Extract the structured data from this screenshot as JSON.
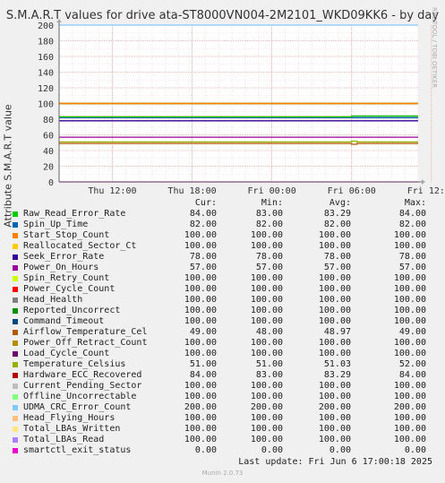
{
  "chart_data": {
    "type": "line",
    "title": "S.M.A.R.T values for drive ata-ST8000VN004-2M2101_WKD09KK6 - by day",
    "ylabel": "Attribute S.M.A.R.T value",
    "ylim": [
      0,
      200
    ],
    "yticks": [
      0,
      20,
      40,
      60,
      80,
      100,
      120,
      140,
      160,
      180,
      200
    ],
    "xticks": [
      "Thu 12:00",
      "Thu 18:00",
      "Fri 00:00",
      "Fri 06:00",
      "Fri 12:00"
    ],
    "xrange_hours": [
      8,
      35
    ],
    "xtick_hours": [
      12,
      18,
      24,
      30,
      36
    ],
    "grid": true,
    "legend_position": "bottom",
    "series": [
      {
        "name": "Raw_Read_Error_Rate",
        "color": "#00cc00",
        "cur": "84.00",
        "min": "83.00",
        "avg": "83.29",
        "max": "84.00",
        "points": [
          [
            8,
            83
          ],
          [
            30,
            83
          ],
          [
            30,
            84
          ],
          [
            35,
            84
          ]
        ]
      },
      {
        "name": "Spin_Up_Time",
        "color": "#0066b3",
        "cur": "82.00",
        "min": "82.00",
        "avg": "82.00",
        "max": "82.00",
        "points": [
          [
            8,
            82
          ],
          [
            35,
            82
          ]
        ]
      },
      {
        "name": "Start_Stop_Count",
        "color": "#ff8000",
        "cur": "100.00",
        "min": "100.00",
        "avg": "100.00",
        "max": "100.00",
        "points": [
          [
            8,
            100
          ],
          [
            35,
            100
          ]
        ]
      },
      {
        "name": "Reallocated_Sector_Ct",
        "color": "#ffcc00",
        "cur": "100.00",
        "min": "100.00",
        "avg": "100.00",
        "max": "100.00",
        "points": [
          [
            8,
            100
          ],
          [
            35,
            100
          ]
        ]
      },
      {
        "name": "Seek_Error_Rate",
        "color": "#330099",
        "cur": "78.00",
        "min": "78.00",
        "avg": "78.00",
        "max": "78.00",
        "points": [
          [
            8,
            78
          ],
          [
            35,
            78
          ]
        ]
      },
      {
        "name": "Power_On_Hours",
        "color": "#990099",
        "cur": "57.00",
        "min": "57.00",
        "avg": "57.00",
        "max": "57.00",
        "points": [
          [
            8,
            57
          ],
          [
            35,
            57
          ]
        ]
      },
      {
        "name": "Spin_Retry_Count",
        "color": "#ccff00",
        "cur": "100.00",
        "min": "100.00",
        "avg": "100.00",
        "max": "100.00",
        "points": [
          [
            8,
            100
          ],
          [
            35,
            100
          ]
        ]
      },
      {
        "name": "Power_Cycle_Count",
        "color": "#ff0000",
        "cur": "100.00",
        "min": "100.00",
        "avg": "100.00",
        "max": "100.00",
        "points": [
          [
            8,
            100
          ],
          [
            35,
            100
          ]
        ]
      },
      {
        "name": "Head_Health",
        "color": "#808080",
        "cur": "100.00",
        "min": "100.00",
        "avg": "100.00",
        "max": "100.00",
        "points": [
          [
            8,
            100
          ],
          [
            35,
            100
          ]
        ]
      },
      {
        "name": "Reported_Uncorrect",
        "color": "#008f00",
        "cur": "100.00",
        "min": "100.00",
        "avg": "100.00",
        "max": "100.00",
        "points": [
          [
            8,
            100
          ],
          [
            35,
            100
          ]
        ]
      },
      {
        "name": "Command_Timeout",
        "color": "#00487d",
        "cur": "100.00",
        "min": "100.00",
        "avg": "100.00",
        "max": "100.00",
        "points": [
          [
            8,
            100
          ],
          [
            35,
            100
          ]
        ]
      },
      {
        "name": "Airflow_Temperature_Cel",
        "color": "#b35a00",
        "cur": "49.00",
        "min": "48.00",
        "avg": "48.97",
        "max": "49.00",
        "points": [
          [
            8,
            49
          ],
          [
            30,
            49
          ],
          [
            30,
            48
          ],
          [
            30.4,
            48
          ],
          [
            30.4,
            49
          ],
          [
            35,
            49
          ]
        ]
      },
      {
        "name": "Power_Off_Retract_Count",
        "color": "#b38f00",
        "cur": "100.00",
        "min": "100.00",
        "avg": "100.00",
        "max": "100.00",
        "points": [
          [
            8,
            100
          ],
          [
            35,
            100
          ]
        ]
      },
      {
        "name": "Load_Cycle_Count",
        "color": "#6b006b",
        "cur": "100.00",
        "min": "100.00",
        "avg": "100.00",
        "max": "100.00",
        "points": [
          [
            8,
            100
          ],
          [
            35,
            100
          ]
        ]
      },
      {
        "name": "Temperature_Celsius",
        "color": "#8fb300",
        "cur": "51.00",
        "min": "51.00",
        "avg": "51.03",
        "max": "52.00",
        "points": [
          [
            8,
            51
          ],
          [
            30,
            51
          ],
          [
            30,
            52
          ],
          [
            30.4,
            52
          ],
          [
            30.4,
            51
          ],
          [
            35,
            51
          ]
        ]
      },
      {
        "name": "Hardware_ECC_Recovered",
        "color": "#b30000",
        "cur": "84.00",
        "min": "83.00",
        "avg": "83.29",
        "max": "84.00",
        "points": [
          [
            8,
            83
          ],
          [
            30,
            83
          ],
          [
            30,
            84
          ],
          [
            35,
            84
          ]
        ]
      },
      {
        "name": "Current_Pending_Sector",
        "color": "#bebebe",
        "cur": "100.00",
        "min": "100.00",
        "avg": "100.00",
        "max": "100.00",
        "points": [
          [
            8,
            100
          ],
          [
            35,
            100
          ]
        ]
      },
      {
        "name": "Offline_Uncorrectable",
        "color": "#80ff80",
        "cur": "100.00",
        "min": "100.00",
        "avg": "100.00",
        "max": "100.00",
        "points": [
          [
            8,
            100
          ],
          [
            35,
            100
          ]
        ]
      },
      {
        "name": "UDMA_CRC_Error_Count",
        "color": "#80c9ff",
        "cur": "200.00",
        "min": "200.00",
        "avg": "200.00",
        "max": "200.00",
        "points": [
          [
            8,
            200
          ],
          [
            35,
            200
          ]
        ]
      },
      {
        "name": "Head_Flying_Hours",
        "color": "#ffc080",
        "cur": "100.00",
        "min": "100.00",
        "avg": "100.00",
        "max": "100.00",
        "points": [
          [
            8,
            100
          ],
          [
            35,
            100
          ]
        ]
      },
      {
        "name": "Total_LBAs_Written",
        "color": "#ffe680",
        "cur": "100.00",
        "min": "100.00",
        "avg": "100.00",
        "max": "100.00",
        "points": [
          [
            8,
            100
          ],
          [
            35,
            100
          ]
        ]
      },
      {
        "name": "Total_LBAs_Read",
        "color": "#aa80ff",
        "cur": "100.00",
        "min": "100.00",
        "avg": "100.00",
        "max": "100.00",
        "points": [
          [
            8,
            100
          ],
          [
            35,
            100
          ]
        ]
      },
      {
        "name": "smartctl_exit_status",
        "color": "#ee00cc",
        "cur": "0.00",
        "min": "0.00",
        "avg": "0.00",
        "max": "0.00",
        "points": [
          [
            8,
            0
          ],
          [
            35,
            0
          ]
        ]
      }
    ]
  },
  "legend_headers": {
    "cur": "Cur:",
    "min": "Min:",
    "avg": "Avg:",
    "max": "Max:"
  },
  "side_text": "RRDTOOL / TOBI OETIKER",
  "last_update": "Last update: Fri Jun  6 17:00:18 2025",
  "version": "Munin 2.0.73"
}
